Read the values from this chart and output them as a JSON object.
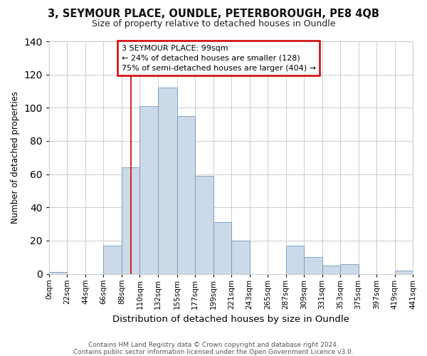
{
  "title1": "3, SEYMOUR PLACE, OUNDLE, PETERBOROUGH, PE8 4QB",
  "title2": "Size of property relative to detached houses in Oundle",
  "xlabel": "Distribution of detached houses by size in Oundle",
  "ylabel": "Number of detached properties",
  "footer1": "Contains HM Land Registry data © Crown copyright and database right 2024.",
  "footer2": "Contains public sector information licensed under the Open Government Licence v3.0.",
  "annotation_line1": "3 SEYMOUR PLACE: 99sqm",
  "annotation_line2": "← 24% of detached houses are smaller (128)",
  "annotation_line3": "75% of semi-detached houses are larger (404) →",
  "bar_edges": [
    0,
    22,
    44,
    66,
    88,
    110,
    132,
    155,
    177,
    199,
    221,
    243,
    265,
    287,
    309,
    331,
    353,
    375,
    397,
    419,
    441
  ],
  "bar_heights": [
    1,
    0,
    0,
    17,
    64,
    101,
    112,
    95,
    59,
    31,
    20,
    0,
    0,
    17,
    10,
    5,
    6,
    0,
    0,
    2
  ],
  "bar_color": "#ccd9e8",
  "bar_edge_color": "#7099bb",
  "ann_edge_color": "#cc0000",
  "property_sqm": 99,
  "vline_color": "#cc0000",
  "ylim_max": 140,
  "yticks": [
    0,
    20,
    40,
    60,
    80,
    100,
    120,
    140
  ],
  "grid_color": "#cccccc",
  "bg_color": "#ffffff"
}
